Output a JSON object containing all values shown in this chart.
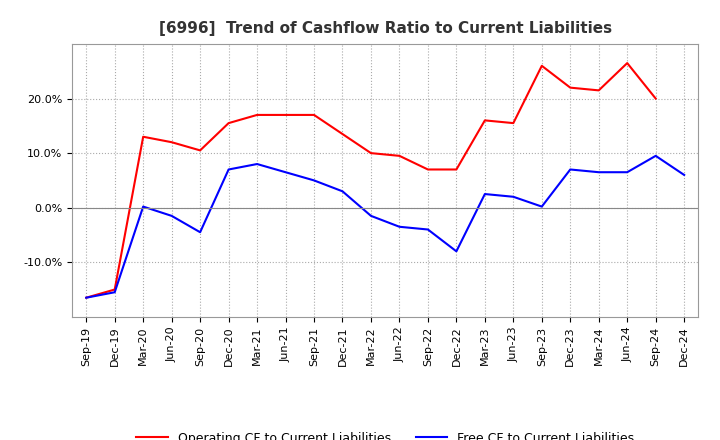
{
  "title": "[6996]  Trend of Cashflow Ratio to Current Liabilities",
  "x_labels": [
    "Sep-19",
    "Dec-19",
    "Mar-20",
    "Jun-20",
    "Sep-20",
    "Dec-20",
    "Mar-21",
    "Jun-21",
    "Sep-21",
    "Dec-21",
    "Mar-22",
    "Jun-22",
    "Sep-22",
    "Dec-22",
    "Mar-23",
    "Jun-23",
    "Sep-23",
    "Dec-23",
    "Mar-24",
    "Jun-24",
    "Sep-24",
    "Dec-24"
  ],
  "operating_cf": [
    -16.5,
    -15.0,
    13.0,
    12.0,
    10.5,
    15.5,
    17.0,
    17.0,
    17.0,
    13.5,
    10.0,
    9.5,
    7.0,
    7.0,
    16.0,
    15.5,
    26.0,
    22.0,
    21.5,
    26.5,
    20.0,
    null
  ],
  "free_cf": [
    -16.5,
    -15.5,
    0.2,
    -1.5,
    -4.5,
    7.0,
    8.0,
    6.5,
    5.0,
    3.0,
    -1.5,
    -3.5,
    -4.0,
    -8.0,
    2.5,
    2.0,
    0.2,
    7.0,
    6.5,
    6.5,
    9.5,
    6.0
  ],
  "operating_color": "#ff0000",
  "free_color": "#0000ff",
  "ylim": [
    -20,
    30
  ],
  "yticks": [
    -10,
    0,
    10,
    20
  ],
  "ytick_labels": [
    "-10.0%",
    "0.0%",
    "10.0%",
    "20.0%"
  ],
  "legend_op": "Operating CF to Current Liabilities",
  "legend_free": "Free CF to Current Liabilities",
  "bg_color": "#ffffff",
  "plot_bg": "#ffffff",
  "grid_color": "#aaaaaa",
  "title_fontsize": 11,
  "title_color": "#333333",
  "tick_fontsize": 8,
  "legend_fontsize": 9
}
